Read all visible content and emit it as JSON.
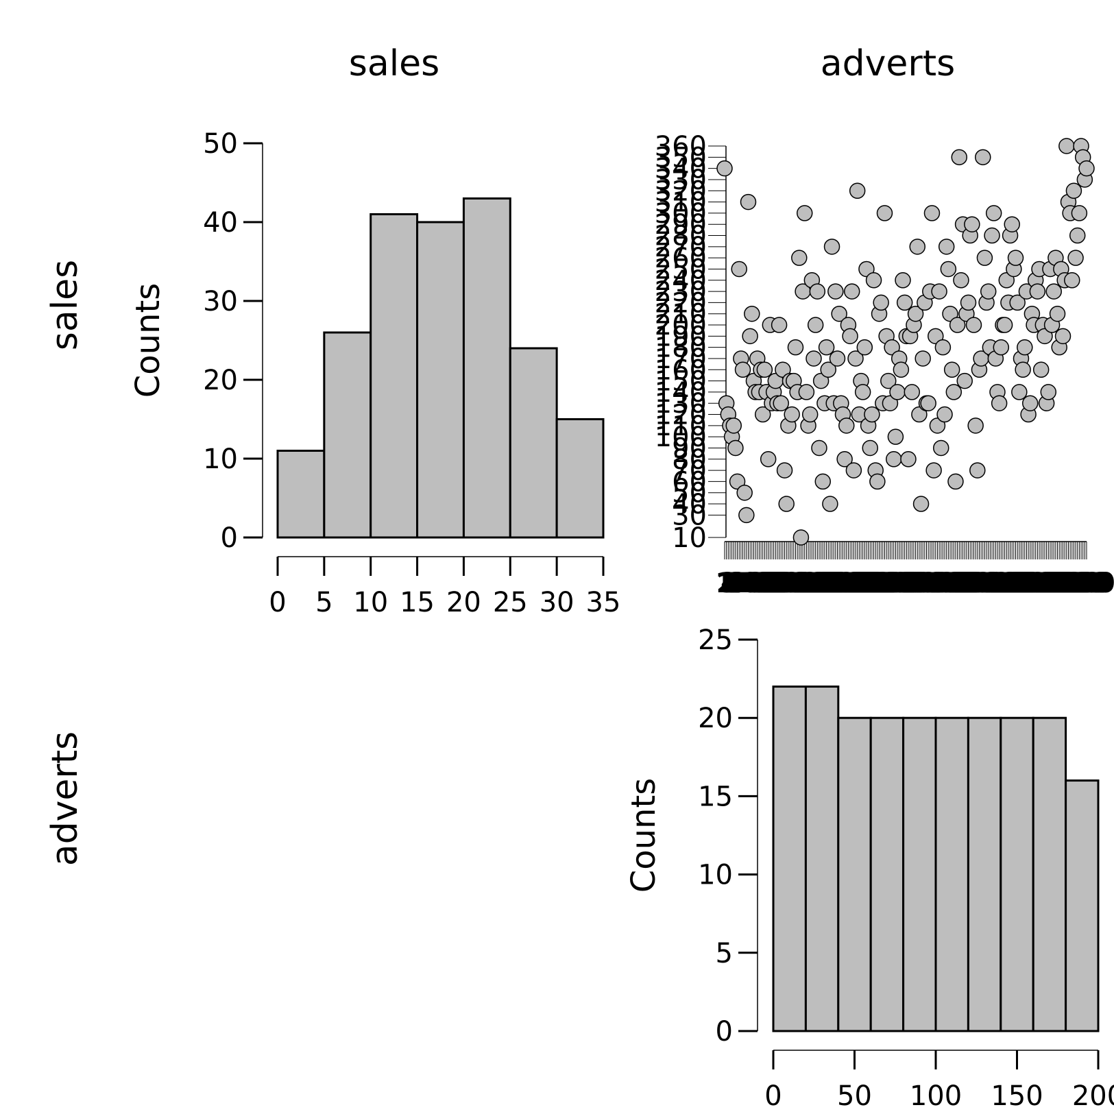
{
  "matrix": {
    "col_headers": [
      "sales",
      "adverts"
    ],
    "row_headers": [
      "sales",
      "adverts"
    ]
  },
  "colors": {
    "fill": "#bebebe",
    "stroke": "#000000",
    "background": "#ffffff"
  },
  "chart_data": [
    {
      "type": "bar",
      "variable": "sales",
      "bin_edges": [
        0,
        5,
        10,
        15,
        20,
        25,
        30,
        35
      ],
      "values": [
        11,
        26,
        41,
        40,
        43,
        24,
        15
      ],
      "ylabel": "Counts",
      "xlabel": "",
      "ylim": [
        0,
        50
      ],
      "yticks": [
        0,
        10,
        20,
        30,
        40,
        50
      ],
      "xticks": [
        0,
        5,
        10,
        15,
        20,
        25,
        30,
        35
      ],
      "grid": false
    },
    {
      "type": "scatter",
      "variables": [
        "adverts",
        "sales"
      ],
      "x": "adverts",
      "y": "sales",
      "yticks": [
        10,
        30,
        40,
        50,
        60,
        70,
        80,
        90,
        100,
        110,
        120,
        130,
        140,
        150,
        160,
        170,
        180,
        190,
        200,
        210,
        220,
        230,
        240,
        250,
        260,
        270,
        280,
        290,
        300,
        310,
        320,
        330,
        340,
        350,
        360
      ],
      "ylim": [
        10,
        360
      ],
      "x_tick_labels_overlapping": true,
      "points": [
        [
          1,
          340
        ],
        [
          2,
          130
        ],
        [
          3,
          120
        ],
        [
          4,
          110
        ],
        [
          5,
          100
        ],
        [
          6,
          110
        ],
        [
          7,
          90
        ],
        [
          8,
          60
        ],
        [
          9,
          250
        ],
        [
          10,
          170
        ],
        [
          11,
          160
        ],
        [
          12,
          50
        ],
        [
          13,
          30
        ],
        [
          14,
          310
        ],
        [
          15,
          190
        ],
        [
          16,
          210
        ],
        [
          17,
          150
        ],
        [
          18,
          140
        ],
        [
          19,
          170
        ],
        [
          20,
          140
        ],
        [
          21,
          160
        ],
        [
          22,
          120
        ],
        [
          23,
          160
        ],
        [
          24,
          140
        ],
        [
          25,
          80
        ],
        [
          26,
          200
        ],
        [
          27,
          130
        ],
        [
          28,
          140
        ],
        [
          29,
          150
        ],
        [
          30,
          130
        ],
        [
          31,
          200
        ],
        [
          32,
          130
        ],
        [
          33,
          160
        ],
        [
          34,
          70
        ],
        [
          35,
          40
        ],
        [
          36,
          110
        ],
        [
          37,
          150
        ],
        [
          38,
          120
        ],
        [
          39,
          150
        ],
        [
          40,
          180
        ],
        [
          41,
          140
        ],
        [
          42,
          260
        ],
        [
          43,
          10
        ],
        [
          44,
          230
        ],
        [
          45,
          300
        ],
        [
          46,
          140
        ],
        [
          47,
          110
        ],
        [
          48,
          120
        ],
        [
          49,
          240
        ],
        [
          50,
          170
        ],
        [
          51,
          200
        ],
        [
          52,
          230
        ],
        [
          53,
          90
        ],
        [
          54,
          150
        ],
        [
          55,
          60
        ],
        [
          56,
          130
        ],
        [
          57,
          180
        ],
        [
          58,
          160
        ],
        [
          59,
          40
        ],
        [
          60,
          270
        ],
        [
          61,
          130
        ],
        [
          62,
          230
        ],
        [
          63,
          170
        ],
        [
          64,
          210
        ],
        [
          65,
          130
        ],
        [
          66,
          120
        ],
        [
          67,
          80
        ],
        [
          68,
          110
        ],
        [
          69,
          200
        ],
        [
          70,
          190
        ],
        [
          71,
          230
        ],
        [
          72,
          70
        ],
        [
          73,
          170
        ],
        [
          74,
          320
        ],
        [
          75,
          120
        ],
        [
          76,
          150
        ],
        [
          77,
          140
        ],
        [
          78,
          180
        ],
        [
          79,
          250
        ],
        [
          80,
          110
        ],
        [
          81,
          90
        ],
        [
          82,
          120
        ],
        [
          83,
          240
        ],
        [
          84,
          70
        ],
        [
          85,
          60
        ],
        [
          86,
          210
        ],
        [
          87,
          220
        ],
        [
          88,
          130
        ],
        [
          89,
          300
        ],
        [
          90,
          190
        ],
        [
          91,
          150
        ],
        [
          92,
          130
        ],
        [
          93,
          180
        ],
        [
          94,
          80
        ],
        [
          95,
          100
        ],
        [
          96,
          140
        ],
        [
          97,
          170
        ],
        [
          98,
          160
        ],
        [
          99,
          240
        ],
        [
          100,
          220
        ],
        [
          101,
          190
        ],
        [
          102,
          80
        ],
        [
          103,
          190
        ],
        [
          104,
          140
        ],
        [
          105,
          200
        ],
        [
          106,
          210
        ],
        [
          107,
          270
        ],
        [
          108,
          120
        ],
        [
          109,
          40
        ],
        [
          110,
          170
        ],
        [
          111,
          220
        ],
        [
          112,
          130
        ],
        [
          113,
          130
        ],
        [
          114,
          230
        ],
        [
          115,
          300
        ],
        [
          116,
          70
        ],
        [
          117,
          190
        ],
        [
          118,
          110
        ],
        [
          119,
          230
        ],
        [
          120,
          90
        ],
        [
          121,
          180
        ],
        [
          122,
          120
        ],
        [
          123,
          270
        ],
        [
          124,
          250
        ],
        [
          125,
          210
        ],
        [
          126,
          160
        ],
        [
          127,
          140
        ],
        [
          128,
          60
        ],
        [
          129,
          200
        ],
        [
          130,
          350
        ],
        [
          131,
          240
        ],
        [
          132,
          290
        ],
        [
          133,
          150
        ],
        [
          134,
          210
        ],
        [
          135,
          220
        ],
        [
          136,
          280
        ],
        [
          137,
          290
        ],
        [
          138,
          200
        ],
        [
          139,
          110
        ],
        [
          140,
          70
        ],
        [
          141,
          160
        ],
        [
          142,
          170
        ],
        [
          143,
          350
        ],
        [
          144,
          260
        ],
        [
          145,
          220
        ],
        [
          146,
          230
        ],
        [
          147,
          180
        ],
        [
          148,
          280
        ],
        [
          149,
          300
        ],
        [
          150,
          170
        ],
        [
          151,
          140
        ],
        [
          152,
          130
        ],
        [
          153,
          180
        ],
        [
          154,
          200
        ],
        [
          155,
          200
        ],
        [
          156,
          240
        ],
        [
          157,
          220
        ],
        [
          158,
          280
        ],
        [
          159,
          290
        ],
        [
          160,
          250
        ],
        [
          161,
          260
        ],
        [
          162,
          220
        ],
        [
          163,
          140
        ],
        [
          164,
          170
        ],
        [
          165,
          160
        ],
        [
          166,
          180
        ],
        [
          167,
          230
        ],
        [
          168,
          120
        ],
        [
          169,
          130
        ],
        [
          170,
          210
        ],
        [
          171,
          200
        ],
        [
          172,
          240
        ],
        [
          173,
          230
        ],
        [
          174,
          250
        ],
        [
          175,
          160
        ],
        [
          176,
          200
        ],
        [
          177,
          190
        ],
        [
          178,
          130
        ],
        [
          179,
          140
        ],
        [
          180,
          250
        ],
        [
          181,
          200
        ],
        [
          182,
          230
        ],
        [
          183,
          260
        ],
        [
          184,
          210
        ],
        [
          185,
          180
        ],
        [
          186,
          250
        ],
        [
          187,
          190
        ],
        [
          188,
          240
        ],
        [
          189,
          360
        ],
        [
          190,
          310
        ],
        [
          191,
          300
        ],
        [
          192,
          240
        ],
        [
          193,
          320
        ],
        [
          194,
          260
        ],
        [
          195,
          280
        ],
        [
          196,
          300
        ],
        [
          197,
          360
        ],
        [
          198,
          350
        ],
        [
          199,
          330
        ],
        [
          200,
          340
        ]
      ]
    },
    {
      "type": "bar",
      "variable": "adverts",
      "bin_edges": [
        0,
        20,
        40,
        60,
        80,
        100,
        120,
        140,
        160,
        180,
        200
      ],
      "values": [
        22,
        22,
        20,
        20,
        20,
        20,
        20,
        20,
        20,
        16
      ],
      "ylabel": "Counts",
      "xlabel": "",
      "ylim": [
        0,
        25
      ],
      "yticks": [
        0,
        5,
        10,
        15,
        20,
        25
      ],
      "xticks": [
        0,
        50,
        100,
        150,
        200
      ],
      "grid": false
    }
  ]
}
